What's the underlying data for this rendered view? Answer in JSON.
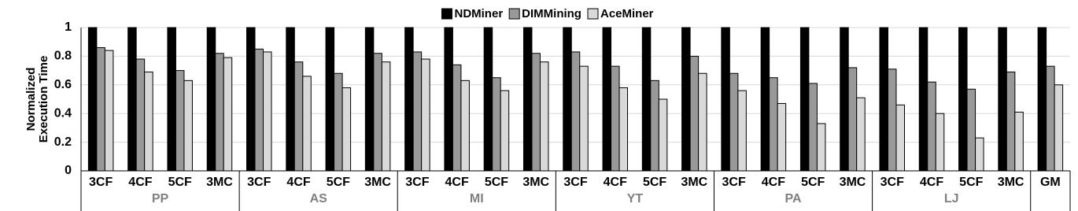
{
  "chart_data": {
    "type": "bar",
    "y_label": "Normalized\nExecution Time",
    "groups": [
      {
        "name": "PP",
        "categories": [
          "3CF",
          "4CF",
          "5CF",
          "3MC"
        ]
      },
      {
        "name": "AS",
        "categories": [
          "3CF",
          "4CF",
          "5CF",
          "3MC"
        ]
      },
      {
        "name": "MI",
        "categories": [
          "3CF",
          "4CF",
          "5CF",
          "3MC"
        ]
      },
      {
        "name": "YT",
        "categories": [
          "3CF",
          "4CF",
          "5CF",
          "3MC"
        ]
      },
      {
        "name": "PA",
        "categories": [
          "3CF",
          "4CF",
          "5CF",
          "3MC"
        ]
      },
      {
        "name": "LJ",
        "categories": [
          "3CF",
          "4CF",
          "5CF",
          "3MC"
        ]
      },
      {
        "name": null,
        "categories": [
          "GM"
        ]
      }
    ],
    "series": [
      {
        "name": "NDMiner",
        "color": "#000000",
        "values": [
          1,
          1,
          1,
          1,
          1,
          1,
          1,
          1,
          1,
          1,
          1,
          1,
          1,
          1,
          1,
          1,
          1,
          1,
          1,
          1,
          1,
          1,
          1,
          1,
          1
        ]
      },
      {
        "name": "DIMMining",
        "color": "#999999",
        "values": [
          0.86,
          0.78,
          0.7,
          0.82,
          0.85,
          0.76,
          0.68,
          0.82,
          0.83,
          0.74,
          0.65,
          0.82,
          0.83,
          0.73,
          0.63,
          0.8,
          0.68,
          0.65,
          0.61,
          0.72,
          0.71,
          0.62,
          0.57,
          0.69,
          0.73
        ]
      },
      {
        "name": "AceMiner",
        "color": "#d9d9d9",
        "values": [
          0.84,
          0.69,
          0.63,
          0.79,
          0.83,
          0.66,
          0.58,
          0.76,
          0.78,
          0.63,
          0.56,
          0.76,
          0.73,
          0.58,
          0.5,
          0.68,
          0.56,
          0.47,
          0.33,
          0.51,
          0.46,
          0.4,
          0.23,
          0.41,
          0.6
        ]
      }
    ],
    "ylim": [
      0,
      1
    ],
    "yticks": [
      0,
      0.2,
      0.4,
      0.6,
      0.8,
      1
    ],
    "grid": true,
    "legend": "top"
  }
}
